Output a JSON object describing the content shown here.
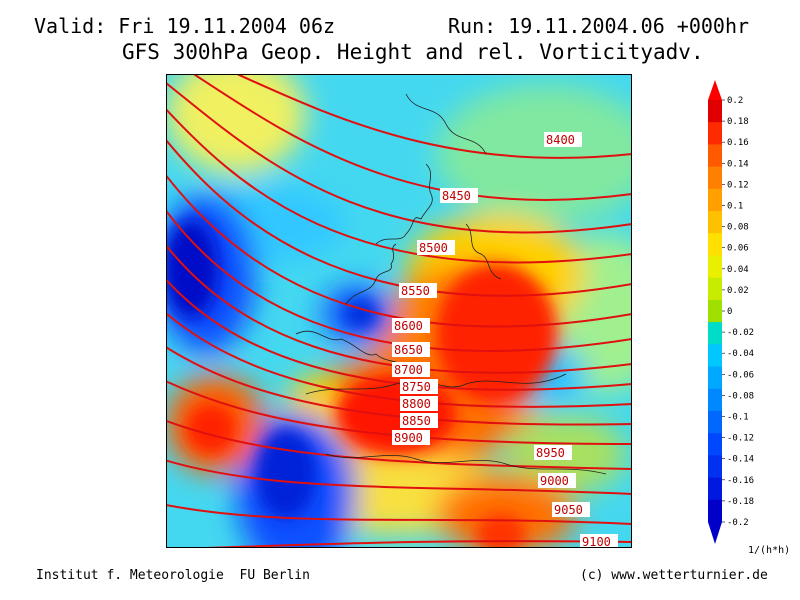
{
  "header": {
    "valid": "Valid: Fri 19.11.2004 06z",
    "run": "Run: 19.11.2004.06 +000hr",
    "title": "GFS 300hPa Geop. Height and rel. Vorticityadv."
  },
  "contour_labels": [
    "8400",
    "8450",
    "8500",
    "8550",
    "8600",
    "8650",
    "8700",
    "8750",
    "8800",
    "8850",
    "8900",
    "8950",
    "9000",
    "9050",
    "9100"
  ],
  "colorbar": {
    "labels": [
      "0.2",
      "0.18",
      "0.16",
      "0.14",
      "0.12",
      "0.1",
      "0.08",
      "0.06",
      "0.04",
      "0.02",
      "0",
      "-0.02",
      "-0.04",
      "-0.06",
      "-0.08",
      "-0.1",
      "-0.12",
      "-0.14",
      "-0.16",
      "-0.18",
      "-0.2"
    ],
    "colors": [
      "#e00000",
      "#ff2a00",
      "#ff5a00",
      "#ff8000",
      "#ffa000",
      "#ffc000",
      "#ffe000",
      "#e8f000",
      "#c8ec00",
      "#a0e000",
      "#00dcc8",
      "#00c8ff",
      "#00a8ff",
      "#0088ff",
      "#0068ff",
      "#0048ff",
      "#0030f0",
      "#0018e0",
      "#0000c8"
    ],
    "unit": "1/(h*h)"
  },
  "footer": {
    "left": "Institut f. Meteorologie  FU Berlin",
    "right": "(c) www.wetterturnier.de"
  },
  "colors": {
    "contour": "#e01010",
    "coast": "#202020",
    "label_text": "#c00000"
  }
}
